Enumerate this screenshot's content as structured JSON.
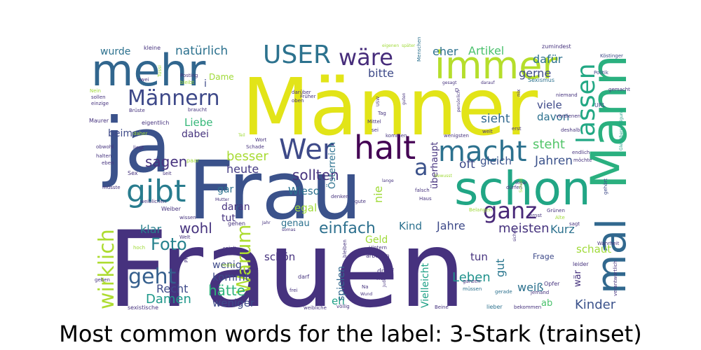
{
  "chart_data": {
    "type": "wordcloud",
    "title": "Most common words for the label: 3-Stark (trainset)",
    "colormap": [
      "#440154",
      "#46327e",
      "#365c8d",
      "#277f8e",
      "#1fa187",
      "#4ac16d",
      "#a0da39",
      "#fde725"
    ],
    "words": [
      {
        "text": "Frauen",
        "weight": 1.0,
        "color": "#46327e"
      },
      {
        "text": "Frau",
        "weight": 0.95,
        "color": "#3b528b"
      },
      {
        "text": "Männer",
        "weight": 0.88,
        "color": "#e2e418"
      },
      {
        "text": "ja",
        "weight": 0.8,
        "color": "#3b528b"
      },
      {
        "text": "Mann",
        "weight": 0.62,
        "color": "#2ab07f"
      },
      {
        "text": "schon",
        "weight": 0.55,
        "color": "#21a685"
      },
      {
        "text": "mehr",
        "weight": 0.52,
        "color": "#31668e"
      },
      {
        "text": "immer",
        "weight": 0.45,
        "color": "#b5de2b"
      },
      {
        "text": "mal",
        "weight": 0.45,
        "color": "#31688e"
      },
      {
        "text": "gibt",
        "weight": 0.4,
        "color": "#287c8e"
      },
      {
        "text": "halt",
        "weight": 0.4,
        "color": "#440154"
      },
      {
        "text": "Wer",
        "weight": 0.36,
        "color": "#3e4a89"
      },
      {
        "text": "macht",
        "weight": 0.36,
        "color": "#2c718e"
      },
      {
        "text": "lassen",
        "weight": 0.34,
        "color": "#22a884"
      },
      {
        "text": "USER",
        "weight": 0.32,
        "color": "#2c728e"
      },
      {
        "text": "Männern",
        "weight": 0.32,
        "color": "#3e4989"
      },
      {
        "text": "wäre",
        "weight": 0.3,
        "color": "#472d7b"
      },
      {
        "text": "a",
        "weight": 0.3,
        "color": "#3b528b"
      },
      {
        "text": "ganz",
        "weight": 0.3,
        "color": "#482878"
      },
      {
        "text": "wirklich",
        "weight": 0.28,
        "color": "#addc30"
      },
      {
        "text": "Warum",
        "weight": 0.28,
        "color": "#addc30"
      },
      {
        "text": "geht",
        "weight": 0.28,
        "color": "#355f8d"
      },
      {
        "text": "Foto",
        "weight": 0.26,
        "color": "#26828e"
      },
      {
        "text": "hätte",
        "weight": 0.24,
        "color": "#2fb47c"
      },
      {
        "text": "Damen",
        "weight": 0.22,
        "color": "#1f988b"
      },
      {
        "text": "Kinder",
        "weight": 0.22,
        "color": "#3b528b"
      },
      {
        "text": "Leben",
        "weight": 0.22,
        "color": "#20928c"
      },
      {
        "text": "wohl",
        "weight": 0.22,
        "color": "#46337e"
      },
      {
        "text": "einfach",
        "weight": 0.22,
        "color": "#2d708e"
      },
      {
        "text": "sollten",
        "weight": 0.22,
        "color": "#46337e"
      },
      {
        "text": "Jahren",
        "weight": 0.2,
        "color": "#3b528b"
      },
      {
        "text": "natürlich",
        "weight": 0.2,
        "color": "#2c718e"
      },
      {
        "text": "bitte",
        "weight": 0.18,
        "color": "#3e4a89"
      },
      {
        "text": "heute",
        "weight": 0.18,
        "color": "#443a83"
      },
      {
        "text": "sagen",
        "weight": 0.2,
        "color": "#46327e"
      },
      {
        "text": "besser",
        "weight": 0.18,
        "color": "#a8db34"
      },
      {
        "text": "sieht",
        "weight": 0.18,
        "color": "#31688e"
      },
      {
        "text": "steht",
        "weight": 0.18,
        "color": "#52c569"
      },
      {
        "text": "gleich",
        "weight": 0.18,
        "color": "#3b528b"
      },
      {
        "text": "eher",
        "weight": 0.18,
        "color": "#2c718e"
      },
      {
        "text": "Artikel",
        "weight": 0.17,
        "color": "#4ac16d"
      },
      {
        "text": "gerne",
        "weight": 0.17,
        "color": "#3e4a89"
      },
      {
        "text": "dafür",
        "weight": 0.17,
        "color": "#2c718e"
      },
      {
        "text": "meisten",
        "weight": 0.18,
        "color": "#46337e"
      },
      {
        "text": "Jahre",
        "weight": 0.17,
        "color": "#3e4a89"
      },
      {
        "text": "Kurz",
        "weight": 0.17,
        "color": "#2c718e"
      },
      {
        "text": "weiß",
        "weight": 0.17,
        "color": "#2c718e"
      },
      {
        "text": "Recht",
        "weight": 0.17,
        "color": "#3e4a89"
      },
      {
        "text": "klar",
        "weight": 0.17,
        "color": "#277f8e"
      },
      {
        "text": "wurde",
        "weight": 0.15,
        "color": "#2c718e"
      },
      {
        "text": "Liebe",
        "weight": 0.15,
        "color": "#35b779"
      },
      {
        "text": "dabei",
        "weight": 0.15,
        "color": "#46337e"
      },
      {
        "text": "beim",
        "weight": 0.15,
        "color": "#3e4a89"
      },
      {
        "text": "gut",
        "weight": 0.15,
        "color": "#2a768e"
      },
      {
        "text": "oft",
        "weight": 0.17,
        "color": "#3e4a89"
      },
      {
        "text": "wenig",
        "weight": 0.15,
        "color": "#3e4a89"
      },
      {
        "text": "weniger",
        "weight": 0.15,
        "color": "#3e4a89"
      },
      {
        "text": "kommt",
        "weight": 0.15,
        "color": "#3e4a89"
      },
      {
        "text": "schön",
        "weight": 0.15,
        "color": "#46327e"
      },
      {
        "text": "tun",
        "weight": 0.15,
        "color": "#46337e"
      },
      {
        "text": "egal",
        "weight": 0.15,
        "color": "#a0da39"
      },
      {
        "text": "Wieso",
        "weight": 0.15,
        "color": "#2c718e"
      },
      {
        "text": "Kind",
        "weight": 0.15,
        "color": "#2c718e"
      },
      {
        "text": "viele",
        "weight": 0.15,
        "color": "#3e4a89"
      },
      {
        "text": "davon",
        "weight": 0.15,
        "color": "#2c718e"
      },
      {
        "text": "schaut",
        "weight": 0.15,
        "color": "#a0da39"
      },
      {
        "text": "eh",
        "weight": 0.15,
        "color": "#1fa187"
      },
      {
        "text": "Geld",
        "weight": 0.14,
        "color": "#a0da39"
      },
      {
        "text": "spielen",
        "weight": 0.14,
        "color": "#31688e"
      },
      {
        "text": "Vielleicht",
        "weight": 0.14,
        "color": "#1fa187"
      },
      {
        "text": "daran",
        "weight": 0.14,
        "color": "#46337e"
      },
      {
        "text": "tut",
        "weight": 0.14,
        "color": "#46337e"
      },
      {
        "text": "gar",
        "weight": 0.14,
        "color": "#2c718e"
      },
      {
        "text": "genau",
        "weight": 0.13,
        "color": "#2c718e"
      },
      {
        "text": "Österreich",
        "weight": 0.13,
        "color": "#2c718e"
      },
      {
        "text": "überhaupt",
        "weight": 0.13,
        "color": "#46337e"
      },
      {
        "text": "nie",
        "weight": 0.13,
        "color": "#a0da39"
      },
      {
        "text": "i",
        "weight": 0.13,
        "color": "#3e4a89"
      },
      {
        "text": "Dame",
        "weight": 0.12,
        "color": "#a0da39"
      },
      {
        "text": "ab",
        "weight": 0.12,
        "color": "#4ac16d"
      },
      {
        "text": "wär",
        "weight": 0.12,
        "color": "#46337e"
      },
      {
        "text": "Frage",
        "weight": 0.1,
        "color": "#3e4a89"
      },
      {
        "text": "kleine",
        "weight": 0.07,
        "color": "#46337e"
      },
      {
        "text": "Menschen",
        "weight": 0.06,
        "color": "#2c718e"
      },
      {
        "text": "zumindest",
        "weight": 0.06,
        "color": "#46337e"
      },
      {
        "text": "Köstinger",
        "weight": 0.06,
        "color": "#3e4a89"
      },
      {
        "text": "Politik",
        "weight": 0.06,
        "color": "#3e4a89"
      },
      {
        "text": "Sexismus",
        "weight": 0.06,
        "color": "#2c718e"
      },
      {
        "text": "gemacht",
        "weight": 0.06,
        "color": "#46337e"
      },
      {
        "text": "niemand",
        "weight": 0.06,
        "color": "#46337e"
      },
      {
        "text": "URL",
        "weight": 0.07,
        "color": "#3e4a89"
      },
      {
        "text": "Gleichberechtigung",
        "weight": 0.05,
        "color": "#1fa187"
      },
      {
        "text": "verdienen",
        "weight": 0.06,
        "color": "#46337e"
      },
      {
        "text": "deshalb",
        "weight": 0.06,
        "color": "#46337e"
      },
      {
        "text": "endlich",
        "weight": 0.06,
        "color": "#46337e"
      },
      {
        "text": "möchte",
        "weight": 0.06,
        "color": "#46337e"
      },
      {
        "text": "gehört",
        "weight": 0.06,
        "color": "#3e4a89"
      },
      {
        "text": "Wahrheit",
        "weight": 0.06,
        "color": "#46337e"
      },
      {
        "text": "sagt",
        "weight": 0.07,
        "color": "#46337e"
      },
      {
        "text": "Alte",
        "weight": 0.06,
        "color": "#a0da39"
      },
      {
        "text": "Grünen",
        "weight": 0.06,
        "color": "#46337e"
      },
      {
        "text": "Belangen",
        "weight": 0.06,
        "color": "#a0da39"
      },
      {
        "text": "leider",
        "weight": 0.07,
        "color": "#46337e"
      },
      {
        "text": "verantwortlich",
        "weight": 0.06,
        "color": "#46337e"
      },
      {
        "text": "jemand",
        "weight": 0.06,
        "color": "#46337e"
      },
      {
        "text": "gerade",
        "weight": 0.06,
        "color": "#2c718e"
      },
      {
        "text": "Opfer",
        "weight": 0.07,
        "color": "#46337e"
      },
      {
        "text": "lieber",
        "weight": 0.07,
        "color": "#2c718e"
      },
      {
        "text": "bekommen",
        "weight": 0.06,
        "color": "#46337e"
      },
      {
        "text": "Beine",
        "weight": 0.06,
        "color": "#46337e"
      },
      {
        "text": "müssen",
        "weight": 0.06,
        "color": "#2c718e"
      },
      {
        "text": "ganzen",
        "weight": 0.06,
        "color": "#46337e"
      },
      {
        "text": "her",
        "weight": 0.07,
        "color": "#46337e"
      },
      {
        "text": "drauf",
        "weight": 0.08,
        "color": "#46337e"
      },
      {
        "text": "arbeiten",
        "weight": 0.07,
        "color": "#46337e"
      },
      {
        "text": "Hintern",
        "weight": 0.06,
        "color": "#46337e"
      },
      {
        "text": "völlig",
        "weight": 0.06,
        "color": "#46337e"
      },
      {
        "text": "weibliche",
        "weight": 0.06,
        "color": "#46337e"
      },
      {
        "text": "frei",
        "weight": 0.06,
        "color": "#46337e"
      },
      {
        "text": "darf",
        "weight": 0.07,
        "color": "#46337e"
      },
      {
        "text": "bleiben",
        "weight": 0.06,
        "color": "#46337e"
      },
      {
        "text": "echt",
        "weight": 0.06,
        "color": "#46337e"
      },
      {
        "text": "reden",
        "weight": 0.06,
        "color": "#a0da39"
      },
      {
        "text": "spielt",
        "weight": 0.06,
        "color": "#46337e"
      },
      {
        "text": "sexistische",
        "weight": 0.06,
        "color": "#46337e"
      },
      {
        "text": "geben",
        "weight": 0.06,
        "color": "#46337e"
      },
      {
        "text": "hoch",
        "weight": 0.06,
        "color": "#a0da39"
      },
      {
        "text": "zeigt",
        "weight": 0.05,
        "color": "#46337e"
      },
      {
        "text": "Welt",
        "weight": 0.06,
        "color": "#46337e"
      },
      {
        "text": "PRW",
        "weight": 0.06,
        "color": "#46337e"
      },
      {
        "text": "wissen",
        "weight": 0.06,
        "color": "#46337e"
      },
      {
        "text": "gehen",
        "weight": 0.06,
        "color": "#46337e"
      },
      {
        "text": "Weiber",
        "weight": 0.07,
        "color": "#46337e"
      },
      {
        "text": "weiblichen",
        "weight": 0.06,
        "color": "#46337e"
      },
      {
        "text": "müsste",
        "weight": 0.06,
        "color": "#46337e"
      },
      {
        "text": "Sex",
        "weight": 0.07,
        "color": "#46337e"
      },
      {
        "text": "seit",
        "weight": 0.06,
        "color": "#46337e"
      },
      {
        "text": "paar",
        "weight": 0.07,
        "color": "#a0da39"
      },
      {
        "text": "eben",
        "weight": 0.06,
        "color": "#46337e"
      },
      {
        "text": "halten",
        "weight": 0.06,
        "color": "#46337e"
      },
      {
        "text": "obwohl",
        "weight": 0.06,
        "color": "#46337e"
      },
      {
        "text": "liegt",
        "weight": 0.06,
        "color": "#46337e"
      },
      {
        "text": "daher",
        "weight": 0.06,
        "color": "#a0da39"
      },
      {
        "text": "Maurer",
        "weight": 0.07,
        "color": "#46337e"
      },
      {
        "text": "eigentlich",
        "weight": 0.07,
        "color": "#46337e"
      },
      {
        "text": "Brüste",
        "weight": 0.06,
        "color": "#46337e"
      },
      {
        "text": "einzige",
        "weight": 0.06,
        "color": "#46337e"
      },
      {
        "text": "sollen",
        "weight": 0.06,
        "color": "#46337e"
      },
      {
        "text": "Nein",
        "weight": 0.06,
        "color": "#a0da39"
      },
      {
        "text": "zwei",
        "weight": 0.06,
        "color": "#46337e"
      },
      {
        "text": "Tussi",
        "weight": 0.06,
        "color": "#a0da39"
      },
      {
        "text": "Posting",
        "weight": 0.06,
        "color": "#46337e"
      },
      {
        "text": "bleibt",
        "weight": 0.06,
        "color": "#a0da39"
      },
      {
        "text": "Früher",
        "weight": 0.06,
        "color": "#46337e"
      },
      {
        "text": "braucht",
        "weight": 0.06,
        "color": "#46337e"
      },
      {
        "text": "darüber",
        "weight": 0.06,
        "color": "#46337e"
      },
      {
        "text": "oben",
        "weight": 0.06,
        "color": "#46337e"
      },
      {
        "text": "Wort",
        "weight": 0.06,
        "color": "#46337e"
      },
      {
        "text": "Schade",
        "weight": 0.06,
        "color": "#46337e"
      },
      {
        "text": "Teil",
        "weight": 0.06,
        "color": "#a0da39"
      },
      {
        "text": "später",
        "weight": 0.05,
        "color": "#a0da39"
      },
      {
        "text": "eigenen",
        "weight": 0.05,
        "color": "#a0da39"
      },
      {
        "text": "Tag",
        "weight": 0.06,
        "color": "#46337e"
      },
      {
        "text": "Mittel",
        "weight": 0.06,
        "color": "#46337e"
      },
      {
        "text": "sei",
        "weight": 0.06,
        "color": "#46337e"
      },
      {
        "text": "kommen",
        "weight": 0.06,
        "color": "#46337e"
      },
      {
        "text": "weit",
        "weight": 0.06,
        "color": "#46337e"
      },
      {
        "text": "wenigsten",
        "weight": 0.06,
        "color": "#46337e"
      },
      {
        "text": "persönlich",
        "weight": 0.05,
        "color": "#46337e"
      },
      {
        "text": "gesagt",
        "weight": 0.06,
        "color": "#46337e"
      },
      {
        "text": "darauf",
        "weight": 0.06,
        "color": "#46337e"
      },
      {
        "text": "nix",
        "weight": 0.06,
        "color": "#46337e"
      },
      {
        "text": "guten",
        "weight": 0.06,
        "color": "#46337e"
      },
      {
        "text": "erst",
        "weight": 0.06,
        "color": "#46337e"
      },
      {
        "text": "sogar",
        "weight": 0.06,
        "color": "#46337e"
      },
      {
        "text": "dürfen",
        "weight": 0.06,
        "color": "#46337e"
      },
      {
        "text": "Schuld",
        "weight": 0.05,
        "color": "#a0da39"
      },
      {
        "text": "bewusst",
        "weight": 0.06,
        "color": "#a0da39"
      },
      {
        "text": "lange",
        "weight": 0.06,
        "color": "#46337e"
      },
      {
        "text": "falsch",
        "weight": 0.06,
        "color": "#46337e"
      },
      {
        "text": "Haus",
        "weight": 0.06,
        "color": "#46337e"
      },
      {
        "text": "gute",
        "weight": 0.06,
        "color": "#46337e"
      },
      {
        "text": "denken",
        "weight": 0.06,
        "color": "#46337e"
      },
      {
        "text": "Mutter",
        "weight": 0.06,
        "color": "#46337e"
      },
      {
        "text": "Jahr",
        "weight": 0.06,
        "color": "#46337e"
      },
      {
        "text": "somas",
        "weight": 0.06,
        "color": "#46337e"
      },
      {
        "text": "ernst",
        "weight": 0.06,
        "color": "#46337e"
      },
      {
        "text": "Judith",
        "weight": 0.05,
        "color": "#46337e"
      },
      {
        "text": "Wund",
        "weight": 0.05,
        "color": "#46337e"
      },
      {
        "text": "USW",
        "weight": 0.05,
        "color": "#46337e"
      },
      {
        "text": "Na",
        "weight": 0.06,
        "color": "#46337e"
      },
      {
        "text": "D",
        "weight": 0.06,
        "color": "#46337e"
      },
      {
        "text": "sicher",
        "weight": 0.06,
        "color": "#46337e"
      }
    ]
  }
}
